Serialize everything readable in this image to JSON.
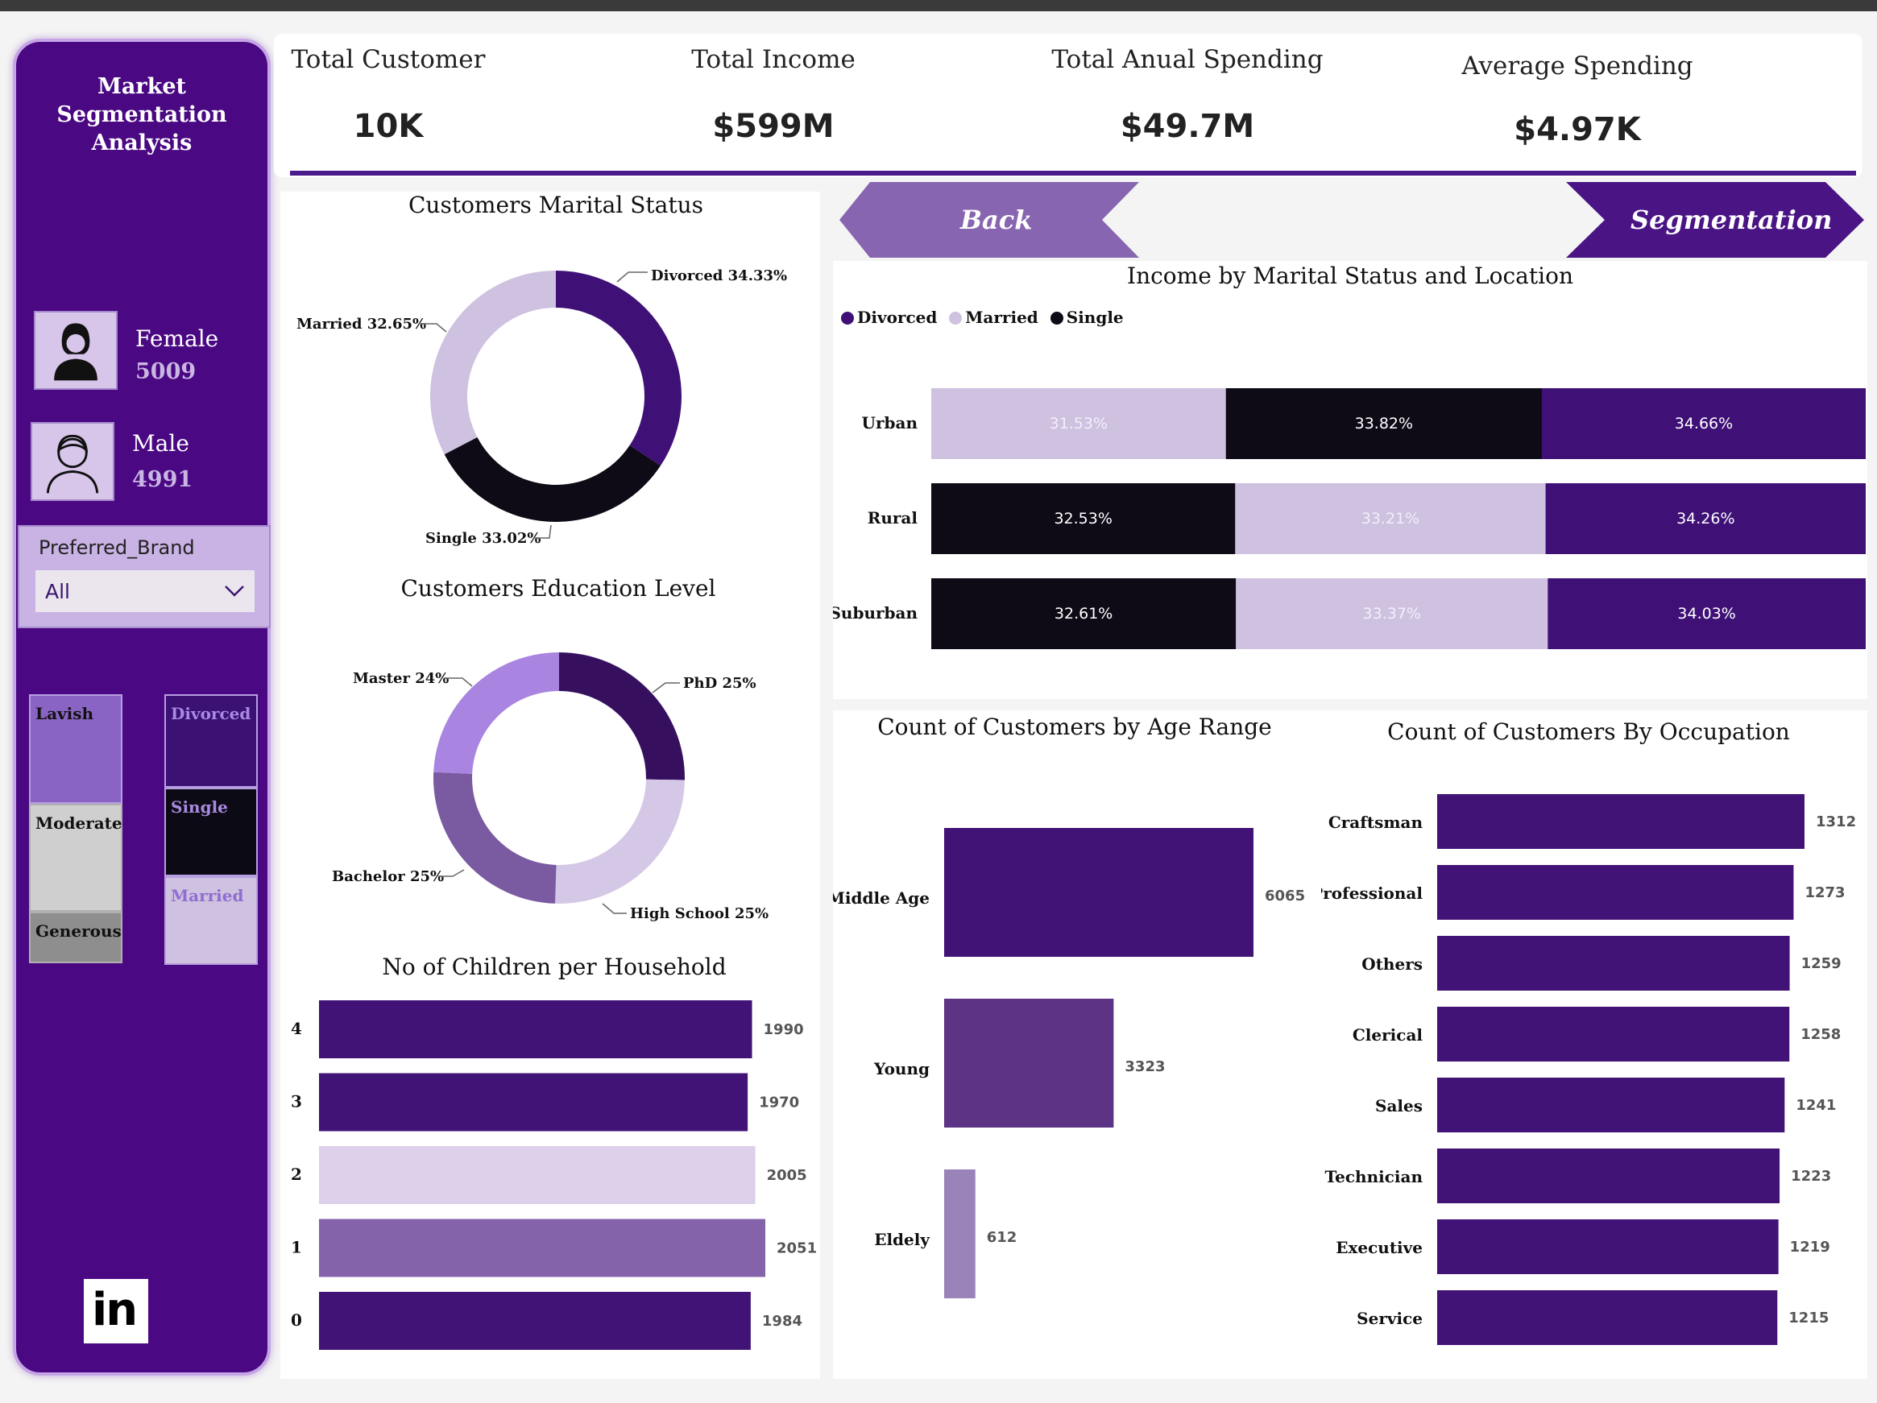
{
  "sidebar": {
    "title": "Market Segmentation Analysis",
    "female": {
      "label": "Female",
      "count": "5009"
    },
    "male": {
      "label": "Male",
      "count": "4991"
    },
    "slicer": {
      "label": "Preferred_Brand",
      "value": "All"
    },
    "spending_tiles": [
      "Lavish",
      "Moderate",
      "Generous"
    ],
    "marital_tiles": [
      "Divorced",
      "Single",
      "Married"
    ],
    "linkedin_text": "in"
  },
  "kpis": [
    {
      "label": "Total Customer",
      "value": "10K"
    },
    {
      "label": "Total Income",
      "value": "$599M"
    },
    {
      "label": "Total Anual Spending",
      "value": "$49.7M"
    },
    {
      "label": "Average Spending",
      "value": "$4.97K"
    }
  ],
  "nav": {
    "back_label": "Back",
    "segmentation_label": "Segmentation"
  },
  "colors": {
    "divorced": "#3f1177",
    "married": "#cfc1e0",
    "single": "#0e0a16",
    "bar_purple": "#421376",
    "sidebar": "#4a0883"
  },
  "chart_data": [
    {
      "type": "pie",
      "title": "Customers Marital Status",
      "categories": [
        "Divorced",
        "Single",
        "Married"
      ],
      "values": [
        34.33,
        33.02,
        32.65
      ],
      "labels": [
        "Divorced 34.33%",
        "Single 33.02%",
        "Married 32.65%"
      ],
      "colors": [
        "#3f1177",
        "#0e0a16",
        "#cfc1e0"
      ]
    },
    {
      "type": "pie",
      "title": "Customers Education Level",
      "categories": [
        "PhD",
        "High School",
        "Bachelor",
        "Master"
      ],
      "values": [
        25,
        25,
        25,
        24
      ],
      "labels": [
        "PhD 25%",
        "High School 25%",
        "Bachelor 25%",
        "Master 24%"
      ],
      "colors": [
        "#36105f",
        "#d5c8e6",
        "#7a5aa0",
        "#a984e0"
      ]
    },
    {
      "type": "bar",
      "title": "No of Children per Household",
      "categories": [
        "4",
        "3",
        "2",
        "1",
        "0"
      ],
      "values": [
        1990,
        1970,
        2005,
        2051,
        1984
      ],
      "colors": [
        "#421376",
        "#421376",
        "#dcd0eb",
        "#8563ab",
        "#421376"
      ]
    },
    {
      "type": "bar",
      "title": "Income by Marital Status and Location",
      "legend": [
        "Divorced",
        "Married",
        "Single"
      ],
      "categories": [
        "Urban",
        "Rural",
        "Suburban"
      ],
      "stacks": [
        [
          {
            "series": "Married",
            "value": 31.53,
            "label": "31.53%"
          },
          {
            "series": "Single",
            "value": 33.82,
            "label": "33.82%"
          },
          {
            "series": "Divorced",
            "value": 34.66,
            "label": "34.66%"
          }
        ],
        [
          {
            "series": "Single",
            "value": 32.53,
            "label": "32.53%"
          },
          {
            "series": "Married",
            "value": 33.21,
            "label": "33.21%"
          },
          {
            "series": "Divorced",
            "value": 34.26,
            "label": "34.26%"
          }
        ],
        [
          {
            "series": "Single",
            "value": 32.61,
            "label": "32.61%"
          },
          {
            "series": "Married",
            "value": 33.37,
            "label": "33.37%"
          },
          {
            "series": "Divorced",
            "value": 34.03,
            "label": "34.03%"
          }
        ]
      ]
    },
    {
      "type": "bar",
      "title": "Count of Customers by Age Range",
      "categories": [
        "Middle Age",
        "Young",
        "Eldely"
      ],
      "values": [
        6065,
        3323,
        612
      ],
      "colors": [
        "#421376",
        "#5d3485",
        "#9a83b8"
      ]
    },
    {
      "type": "bar",
      "title": "Count of Customers By Occupation",
      "categories": [
        "Craftsman",
        "Professional",
        "Others",
        "Clerical",
        "Sales",
        "Technician",
        "Executive",
        "Service"
      ],
      "values": [
        1312,
        1273,
        1259,
        1258,
        1241,
        1223,
        1219,
        1215
      ]
    }
  ]
}
